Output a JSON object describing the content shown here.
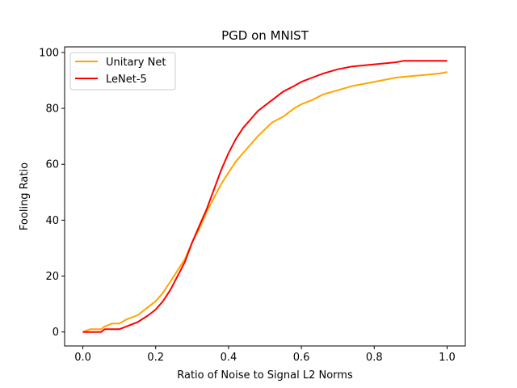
{
  "chart_data": {
    "type": "line",
    "title": "PGD on MNIST",
    "xlabel": "Ratio of Noise to Signal L2 Norms",
    "ylabel": "Fooling Ratio",
    "xlim": [
      -0.05,
      1.05
    ],
    "ylim": [
      -5,
      102
    ],
    "xticks": [
      0.0,
      0.2,
      0.4,
      0.6,
      0.8,
      1.0
    ],
    "xtick_labels": [
      "0.0",
      "0.2",
      "0.4",
      "0.6",
      "0.8",
      "1.0"
    ],
    "yticks": [
      0,
      20,
      40,
      60,
      80,
      100
    ],
    "ytick_labels": [
      "0",
      "20",
      "40",
      "60",
      "80",
      "100"
    ],
    "grid": false,
    "legend_position": "top-left",
    "series": [
      {
        "name": "Unitary Net",
        "color": "#FFA500",
        "points": [
          [
            0.0,
            0
          ],
          [
            0.02,
            1
          ],
          [
            0.05,
            1
          ],
          [
            0.06,
            2
          ],
          [
            0.08,
            3
          ],
          [
            0.1,
            3
          ],
          [
            0.12,
            4.5
          ],
          [
            0.15,
            6
          ],
          [
            0.18,
            9
          ],
          [
            0.2,
            11
          ],
          [
            0.22,
            14
          ],
          [
            0.24,
            18
          ],
          [
            0.26,
            22
          ],
          [
            0.28,
            26
          ],
          [
            0.3,
            32
          ],
          [
            0.32,
            37
          ],
          [
            0.34,
            43
          ],
          [
            0.36,
            48
          ],
          [
            0.38,
            53
          ],
          [
            0.4,
            57
          ],
          [
            0.42,
            61
          ],
          [
            0.44,
            64
          ],
          [
            0.46,
            67
          ],
          [
            0.48,
            70
          ],
          [
            0.5,
            72.5
          ],
          [
            0.52,
            75
          ],
          [
            0.55,
            77
          ],
          [
            0.58,
            80
          ],
          [
            0.6,
            81.5
          ],
          [
            0.63,
            83
          ],
          [
            0.66,
            85
          ],
          [
            0.7,
            86.5
          ],
          [
            0.74,
            88
          ],
          [
            0.78,
            89
          ],
          [
            0.82,
            90
          ],
          [
            0.86,
            91
          ],
          [
            0.9,
            91.5
          ],
          [
            0.94,
            92
          ],
          [
            0.98,
            92.5
          ],
          [
            1.0,
            93
          ]
        ]
      },
      {
        "name": "LeNet-5",
        "color": "#FF0000",
        "points": [
          [
            0.0,
            0
          ],
          [
            0.02,
            0
          ],
          [
            0.05,
            0
          ],
          [
            0.06,
            1
          ],
          [
            0.1,
            1
          ],
          [
            0.12,
            2
          ],
          [
            0.15,
            3.5
          ],
          [
            0.18,
            6
          ],
          [
            0.2,
            8
          ],
          [
            0.22,
            11
          ],
          [
            0.24,
            15
          ],
          [
            0.26,
            20
          ],
          [
            0.28,
            25
          ],
          [
            0.3,
            32
          ],
          [
            0.32,
            38
          ],
          [
            0.34,
            44
          ],
          [
            0.36,
            51
          ],
          [
            0.38,
            58
          ],
          [
            0.4,
            64
          ],
          [
            0.42,
            69
          ],
          [
            0.44,
            73
          ],
          [
            0.46,
            76
          ],
          [
            0.48,
            79
          ],
          [
            0.5,
            81
          ],
          [
            0.52,
            83
          ],
          [
            0.55,
            86
          ],
          [
            0.58,
            88
          ],
          [
            0.6,
            89.5
          ],
          [
            0.63,
            91
          ],
          [
            0.66,
            92.5
          ],
          [
            0.7,
            94
          ],
          [
            0.74,
            95
          ],
          [
            0.78,
            95.5
          ],
          [
            0.82,
            96
          ],
          [
            0.86,
            96.5
          ],
          [
            0.88,
            97
          ],
          [
            0.94,
            97
          ],
          [
            1.0,
            97
          ]
        ]
      }
    ]
  }
}
